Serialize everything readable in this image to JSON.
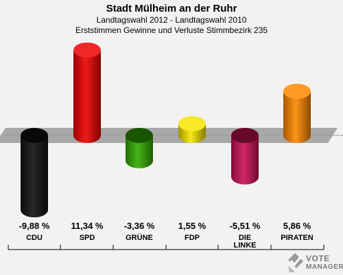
{
  "header": {
    "title": "Stadt Mülheim an der Ruhr",
    "subtitle1": "Landtagswahl 2012 - Landtagswahl 2010",
    "subtitle2": "Erststimmen Gewinne und Verluste Stimmbezirk 235"
  },
  "chart_data": {
    "type": "bar",
    "categories": [
      "CDU",
      "SPD",
      "GRÜNE",
      "FDP",
      "DIE LINKE",
      "PIRATEN"
    ],
    "category_lines": [
      [
        "CDU"
      ],
      [
        "SPD"
      ],
      [
        "GRÜNE"
      ],
      [
        "FDP"
      ],
      [
        "DIE",
        "LINKE"
      ],
      [
        "PIRATEN"
      ]
    ],
    "values": [
      -9.88,
      11.34,
      -3.36,
      1.55,
      -5.51,
      5.86
    ],
    "value_labels": [
      "-9,88 %",
      "11,34 %",
      "-3,36 %",
      "1,55 %",
      "-5,51 %",
      "5,86 %"
    ],
    "colors": [
      "#111111",
      "#ee0000",
      "#33aa00",
      "#f5e500",
      "#cc1155",
      "#ff8800"
    ],
    "unit": "%",
    "grid": false,
    "legend": "none"
  },
  "logo": {
    "line1": "VOTE",
    "line2": "MANAGER",
    "icon": "checkmark-ballot-icon"
  }
}
